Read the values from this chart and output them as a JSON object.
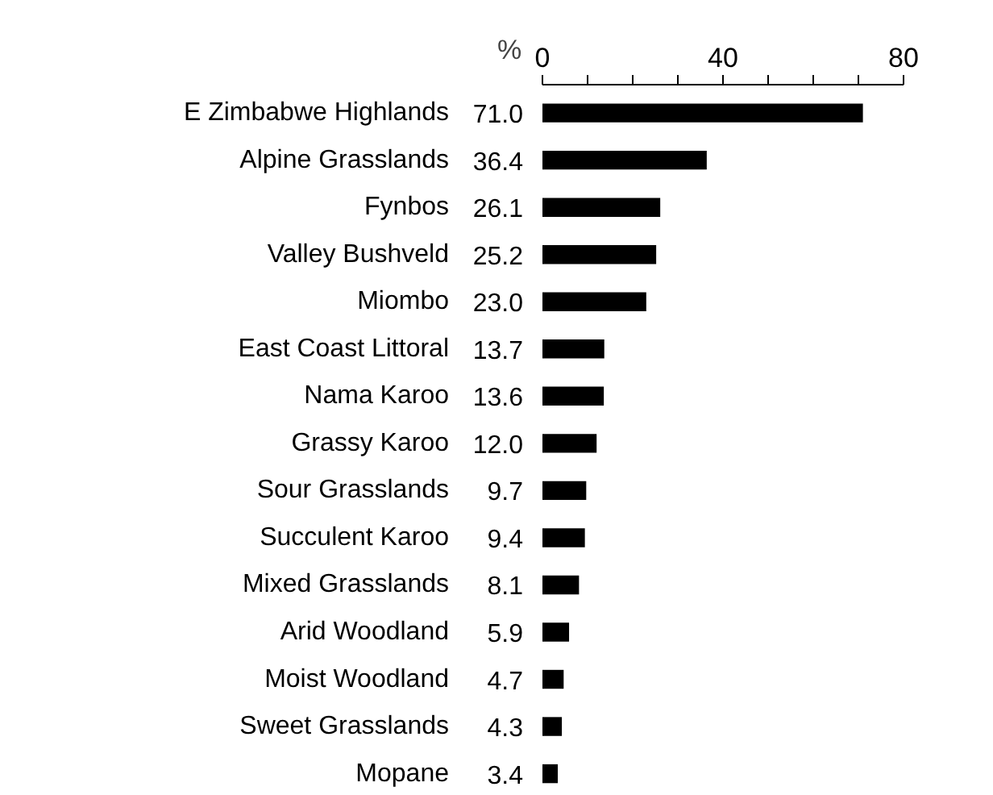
{
  "chart_data": {
    "type": "bar",
    "orientation": "horizontal",
    "xlabel": "%",
    "categories": [
      "E Zimbabwe Highlands",
      "Alpine Grasslands",
      "Fynbos",
      "Valley Bushveld",
      "Miombo",
      "East Coast Littoral",
      "Nama Karoo",
      "Grassy Karoo",
      "Sour Grasslands",
      "Succulent Karoo",
      "Mixed Grasslands",
      "Arid Woodland",
      "Moist Woodland",
      "Sweet Grasslands",
      "Mopane"
    ],
    "values": [
      71.0,
      36.4,
      26.1,
      25.2,
      23.0,
      13.7,
      13.6,
      12.0,
      9.7,
      9.4,
      8.1,
      5.9,
      4.7,
      4.3,
      3.4
    ],
    "value_labels": [
      "71.0",
      "36.4",
      "26.1",
      "25.2",
      "23.0",
      "13.7",
      "13.6",
      "12.0",
      "9.7",
      "9.4",
      "8.1",
      "5.9",
      "4.7",
      "4.3",
      "3.4"
    ],
    "color": "#000000",
    "grid": false,
    "xlim": [
      0,
      80
    ],
    "xticks": [
      0,
      {
        "value": 10,
        "label": null
      },
      {
        "value": 20,
        "label": null
      },
      {
        "value": 30,
        "label": null
      },
      40,
      {
        "value": 50,
        "label": null
      },
      {
        "value": 60,
        "label": null
      },
      {
        "value": 70,
        "label": null
      },
      80
    ]
  }
}
